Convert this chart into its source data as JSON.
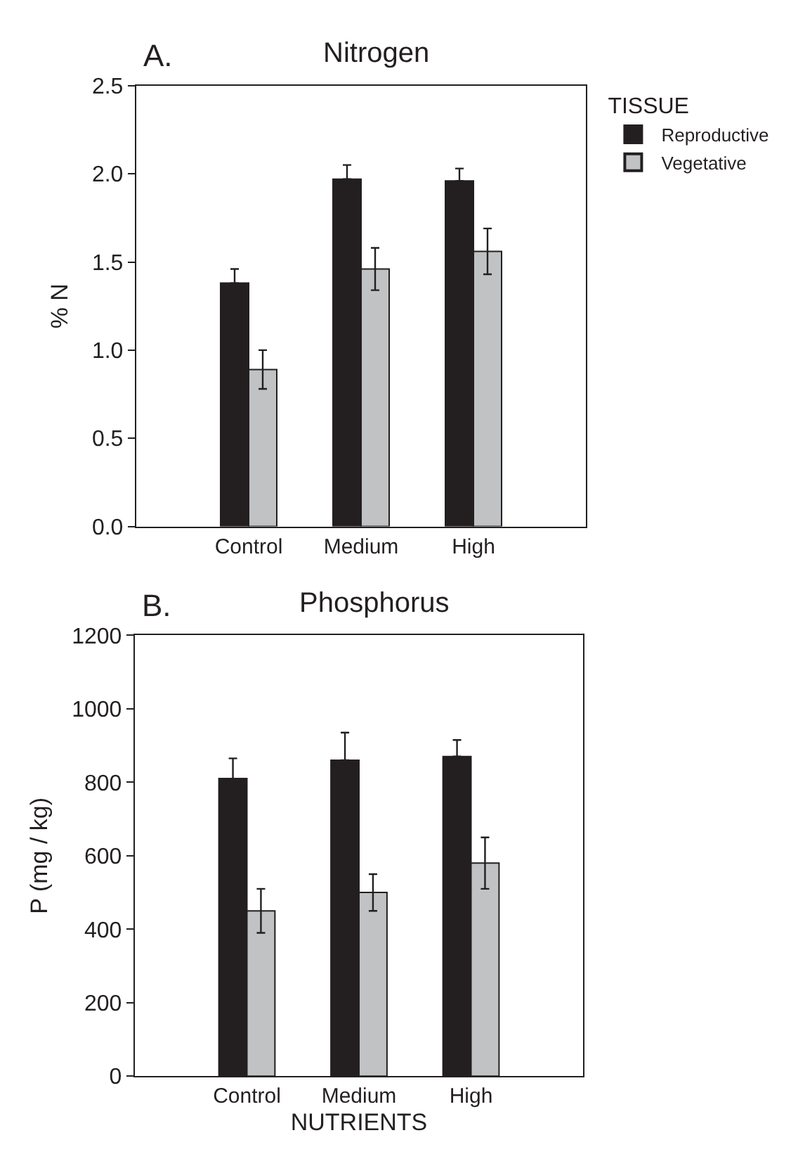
{
  "chart_data": [
    {
      "type": "bar",
      "title": "Nitrogen",
      "annotations": [
        "A."
      ],
      "ylabel": "% N",
      "legend_title": "TISSUE",
      "legend": "right",
      "categories": [
        "Control",
        "Medium",
        "High"
      ],
      "ylim": [
        0,
        2.5
      ],
      "yticks": [
        {
          "value": 0,
          "label": "0.0"
        },
        0.5,
        {
          "value": 1,
          "label": "1.0"
        },
        1.5,
        {
          "value": 2,
          "label": "2.0"
        },
        2.5
      ],
      "series": [
        {
          "name": "Reproductive",
          "color": "#231f20",
          "values": [
            1.38,
            1.97,
            1.96
          ],
          "errors": [
            [
              1.38,
              1.46
            ],
            [
              1.97,
              2.05
            ],
            [
              1.96,
              2.03
            ]
          ]
        },
        {
          "name": "Vegetative",
          "color": "#c0c2c4",
          "values": [
            0.89,
            1.46,
            1.56
          ],
          "errors": [
            0.11,
            0.12,
            0.13
          ]
        }
      ]
    },
    {
      "type": "bar",
      "title": "Phosphorus",
      "annotations": [
        "B."
      ],
      "ylabel": "P (mg / kg)",
      "xlabel": "NUTRIENTS",
      "legend": false,
      "categories": [
        "Control",
        "Medium",
        "High"
      ],
      "ylim": [
        0,
        1200
      ],
      "yticks": [
        0,
        200,
        400,
        600,
        800,
        1000,
        1200
      ],
      "series": [
        {
          "color": "#231f20",
          "values": [
            810,
            860,
            870
          ],
          "errors": [
            [
              810,
              865
            ],
            [
              860,
              935
            ],
            [
              870,
              915
            ]
          ]
        },
        {
          "color": "#c0c2c4",
          "values": [
            450,
            500,
            580
          ],
          "errors": [
            60,
            50,
            70
          ]
        }
      ]
    }
  ]
}
